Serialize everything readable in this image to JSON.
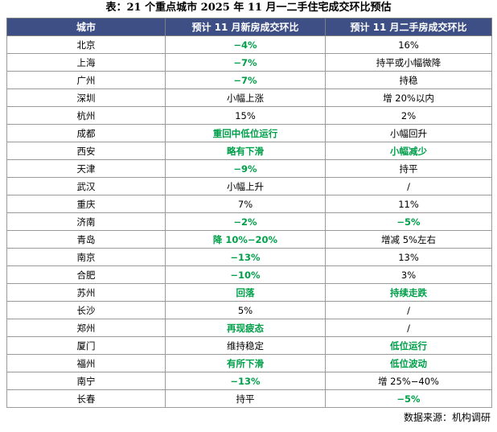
{
  "title": "表：21 个重点城市 2025 年 11 月一二手住宅成交环比预估",
  "table": {
    "headers": [
      "城市",
      "预计 11 月新房成交环比",
      "预计 11 月二手房成交环比"
    ],
    "rows": [
      {
        "city": "北京",
        "new": "−4%",
        "new_green": true,
        "second": "16%",
        "second_green": false
      },
      {
        "city": "上海",
        "new": "−7%",
        "new_green": true,
        "second": "持平或小幅微降",
        "second_green": false
      },
      {
        "city": "广州",
        "new": "−7%",
        "new_green": true,
        "second": "持稳",
        "second_green": false
      },
      {
        "city": "深圳",
        "new": "小幅上涨",
        "new_green": false,
        "second": "增 20%以内",
        "second_green": false
      },
      {
        "city": "杭州",
        "new": "15%",
        "new_green": false,
        "second": "2%",
        "second_green": false
      },
      {
        "city": "成都",
        "new": "重回中低位运行",
        "new_green": true,
        "second": "小幅回升",
        "second_green": false
      },
      {
        "city": "西安",
        "new": "略有下滑",
        "new_green": true,
        "second": "小幅减少",
        "second_green": true
      },
      {
        "city": "天津",
        "new": "−9%",
        "new_green": true,
        "second": "持平",
        "second_green": false
      },
      {
        "city": "武汉",
        "new": "小幅上升",
        "new_green": false,
        "second": "/",
        "second_green": false
      },
      {
        "city": "重庆",
        "new": "7%",
        "new_green": false,
        "second": "11%",
        "second_green": false
      },
      {
        "city": "济南",
        "new": "−2%",
        "new_green": true,
        "second": "−5%",
        "second_green": true
      },
      {
        "city": "青岛",
        "new": "降 10%−20%",
        "new_green": true,
        "second": "增减 5%左右",
        "second_green": false
      },
      {
        "city": "南京",
        "new": "−13%",
        "new_green": true,
        "second": "13%",
        "second_green": false
      },
      {
        "city": "合肥",
        "new": "−10%",
        "new_green": true,
        "second": "3%",
        "second_green": false
      },
      {
        "city": "苏州",
        "new": "回落",
        "new_green": true,
        "second": "持续走跌",
        "second_green": true
      },
      {
        "city": "长沙",
        "new": "5%",
        "new_green": false,
        "second": "/",
        "second_green": false
      },
      {
        "city": "郑州",
        "new": "再现疲态",
        "new_green": true,
        "second": "/",
        "second_green": false
      },
      {
        "city": "厦门",
        "new": "维持稳定",
        "new_green": false,
        "second": "低位运行",
        "second_green": true
      },
      {
        "city": "福州",
        "new": "有所下滑",
        "new_green": true,
        "second": "低位波动",
        "second_green": true
      },
      {
        "city": "南宁",
        "new": "−13%",
        "new_green": true,
        "second": "增 25%−40%",
        "second_green": false
      },
      {
        "city": "长春",
        "new": "持平",
        "new_green": false,
        "second": "−5%",
        "second_green": true
      }
    ]
  },
  "source": "数据来源：机构调研",
  "colors": {
    "header_bg": "#3e4f86",
    "header_text": "#ffffff",
    "decline_text": "#00a04a"
  }
}
